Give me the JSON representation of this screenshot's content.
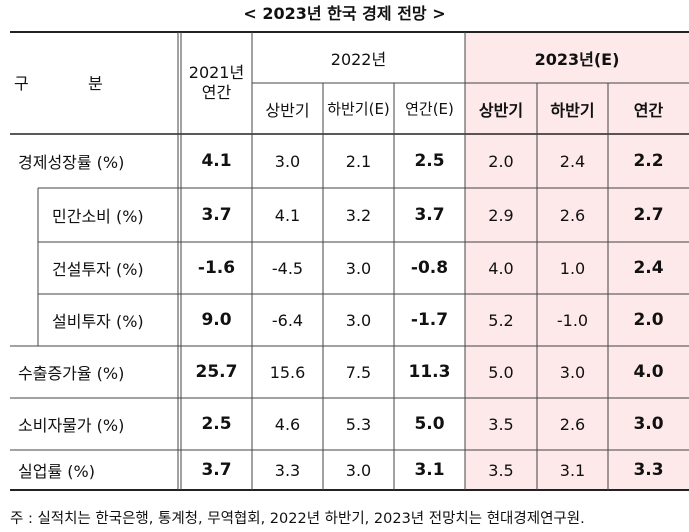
{
  "title": "< 2023년 한국 경제 전망 >",
  "header": {
    "corner_left": "구",
    "corner_right": "분",
    "y2021": "2021년\n연간",
    "y2022": "2022년",
    "y2023": "2023년(E)",
    "sub2022": [
      "상반기",
      "하반기(E)",
      "연간(E)"
    ],
    "sub2023": [
      "상반기",
      "하반기",
      "연간"
    ]
  },
  "rows": [
    {
      "label": "경제성장률 (%)",
      "indent": false,
      "values": [
        "4.1",
        "3.0",
        "2.1",
        "2.5",
        "2.0",
        "2.4",
        "2.2"
      ]
    },
    {
      "label": "민간소비 (%)",
      "indent": true,
      "values": [
        "3.7",
        "4.1",
        "3.2",
        "3.7",
        "2.9",
        "2.6",
        "2.7"
      ]
    },
    {
      "label": "건설투자 (%)",
      "indent": true,
      "values": [
        "-1.6",
        "-4.5",
        "3.0",
        "-0.8",
        "4.0",
        "1.0",
        "2.4"
      ]
    },
    {
      "label": "설비투자 (%)",
      "indent": true,
      "values": [
        "9.0",
        "-6.4",
        "3.0",
        "-1.7",
        "5.2",
        "-1.0",
        "2.0"
      ]
    },
    {
      "label": "수출증가율 (%)",
      "indent": false,
      "values": [
        "25.7",
        "15.6",
        "7.5",
        "11.3",
        "5.0",
        "3.0",
        "4.0"
      ]
    },
    {
      "label": "소비자물가 (%)",
      "indent": false,
      "values": [
        "2.5",
        "4.6",
        "5.3",
        "5.0",
        "3.5",
        "2.6",
        "3.0"
      ]
    },
    {
      "label": "실업률 (%)",
      "indent": false,
      "values": [
        "3.7",
        "3.3",
        "3.0",
        "3.1",
        "3.5",
        "3.1",
        "3.3"
      ]
    }
  ],
  "footnote": "주 : 실적치는 한국은행, 통계청, 무역협회, 2022년 하반기, 2023년 전망치는 현대경제연구원."
}
